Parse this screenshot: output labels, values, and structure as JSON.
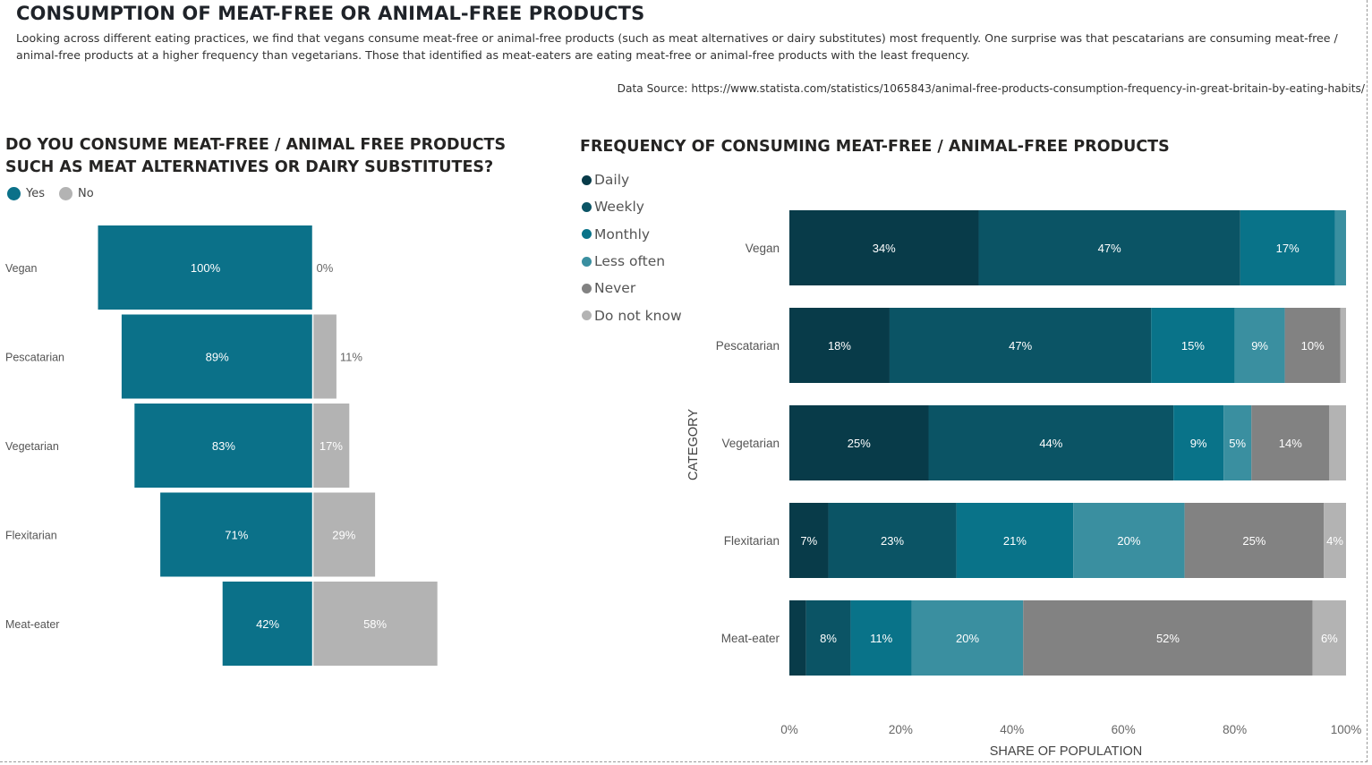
{
  "page": {
    "title": "CONSUMPTION OF MEAT-FREE OR ANIMAL-FREE PRODUCTS",
    "description": "Looking across different eating practices, we find that vegans consume meat-free or animal-free products (such as meat alternatives or dairy substitutes) most frequently.  One surprise was that pescatarians are consuming meat-free / animal-free products at a higher frequency than vegetarians.  Those that identified as meat-eaters are eating meat-free or animal-free products with the least frequency.",
    "data_source": "Data Source: https://www.statista.com/statistics/1065843/animal-free-products-consumption-frequency-in-great-britain-by-eating-habits/"
  },
  "chart_data": [
    {
      "type": "bar",
      "orientation": "diverging-horizontal",
      "title": "DO YOU CONSUME MEAT-FREE / ANIMAL FREE PRODUCTS SUCH AS MEAT ALTERNATIVES OR DAIRY SUBSTITUTES?",
      "categories": [
        "Vegan",
        "Pescatarian",
        "Vegetarian",
        "Flexitarian",
        "Meat-eater"
      ],
      "series": [
        {
          "name": "Yes",
          "color": "#0b7189",
          "values": [
            100,
            89,
            83,
            71,
            42
          ]
        },
        {
          "name": "No",
          "color": "#b3b3b3",
          "values": [
            0,
            11,
            17,
            29,
            58
          ]
        }
      ],
      "legend": "top-left"
    },
    {
      "type": "bar",
      "orientation": "horizontal-stacked-100",
      "title": "FREQUENCY OF CONSUMING MEAT-FREE / ANIMAL-FREE PRODUCTS",
      "ylabel": "CATEGORY",
      "xlabel": "SHARE OF POPULATION",
      "xticks": [
        "0%",
        "20%",
        "40%",
        "60%",
        "80%",
        "100%"
      ],
      "xlim": [
        0,
        100
      ],
      "categories": [
        "Vegan",
        "Pescatarian",
        "Vegetarian",
        "Flexitarian",
        "Meat-eater"
      ],
      "series": [
        {
          "name": "Daily",
          "color": "#083b49",
          "values": [
            34,
            18,
            25,
            7,
            3
          ]
        },
        {
          "name": "Weekly",
          "color": "#0b5465",
          "values": [
            47,
            47,
            44,
            23,
            8
          ]
        },
        {
          "name": "Monthly",
          "color": "#097389",
          "values": [
            17,
            15,
            9,
            21,
            11
          ]
        },
        {
          "name": "Less often",
          "color": "#3a8fa0",
          "values": [
            2,
            9,
            5,
            20,
            20
          ]
        },
        {
          "name": "Never",
          "color": "#828282",
          "values": [
            0,
            10,
            14,
            25,
            52
          ]
        },
        {
          "name": "Do not know",
          "color": "#b3b3b3",
          "values": [
            0,
            1,
            3,
            4,
            6
          ]
        }
      ],
      "legend": "top-left"
    }
  ]
}
